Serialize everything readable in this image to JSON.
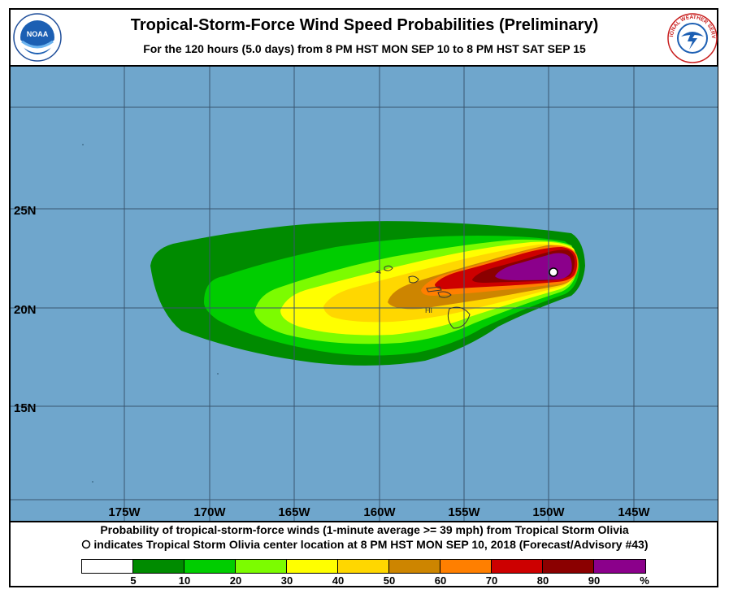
{
  "header": {
    "title": "Tropical-Storm-Force Wind Speed Probabilities (Preliminary)",
    "subtitle": "For the 120 hours (5.0 days) from 8 PM HST MON SEP 10 to 8 PM HST SAT SEP 15"
  },
  "logos": {
    "noaa": {
      "text": "NOAA",
      "icon": "noaa-logo-icon"
    },
    "nws": {
      "text": "NATIONAL WEATHER SERVICE",
      "icon": "nws-logo-icon"
    }
  },
  "map": {
    "lat_labels": [
      "25N",
      "20N",
      "15N"
    ],
    "lon_labels": [
      "175W",
      "170W",
      "165W",
      "160W",
      "155W",
      "150W",
      "145W"
    ],
    "place_label": "HI",
    "colors": {
      "ocean": "#6fa6cc",
      "grid": "#3a556f",
      "land": "#7a8a8a"
    },
    "storm_center": {
      "lon": -149.7,
      "lat": 21.8
    }
  },
  "caption": {
    "line1": "Probability of tropical-storm-force winds (1-minute average >= 39 mph) from Tropical Storm Olivia",
    "line2": "indicates Tropical Storm Olivia center location at 8 PM HST MON SEP 10, 2018 (Forecast/Advisory #43)"
  },
  "legend": {
    "colors": [
      "#ffffff",
      "#008b00",
      "#00cd00",
      "#7cfc00",
      "#ffff00",
      "#ffd700",
      "#cd8500",
      "#ff7f00",
      "#cd0000",
      "#8b0000",
      "#8b008b"
    ],
    "ticks": [
      "5",
      "10",
      "20",
      "30",
      "40",
      "50",
      "60",
      "70",
      "80",
      "90"
    ],
    "unit": "%"
  }
}
